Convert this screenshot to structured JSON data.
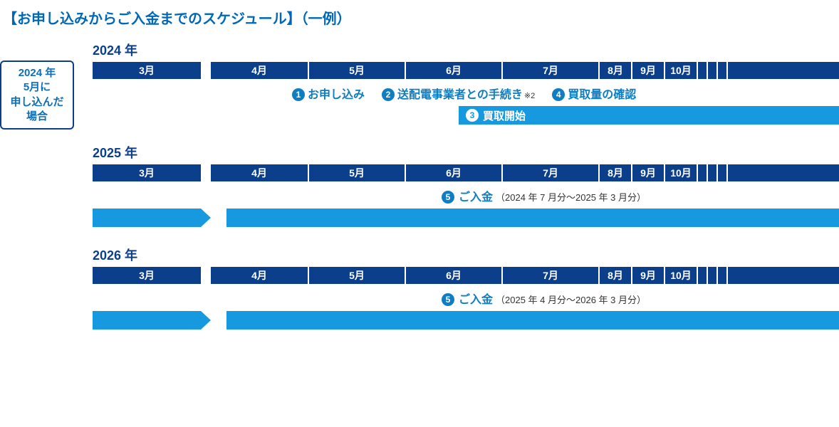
{
  "colors": {
    "title": "#0068b7",
    "dark_blue": "#0b3f8c",
    "bright_blue": "#1799df",
    "accent_text": "#0e7dc1",
    "sidebox_border": "#0b3f8c",
    "sidebox_text": "#0e6fb8"
  },
  "title": "【お申し込みからご入金までのスケジュール】（一例）",
  "sidebox": {
    "line1": "2024 年",
    "line2": "5月に",
    "line3": "申し込んだ",
    "line4": "場合"
  },
  "layout": {
    "total_width": 1048,
    "march_width": 152,
    "gap_after_march": 14,
    "mid_width": 136,
    "small_width": 46,
    "march_to_june_end": 710,
    "arrow_left_width": 152
  },
  "months": [
    "3月",
    "4月",
    "5月",
    "6月",
    "7月",
    "8月",
    "9月",
    "10月"
  ],
  "small_tail_count": 4,
  "years": [
    {
      "label": "2024 年",
      "type": "first",
      "steps_row": [
        {
          "n": "1",
          "text": "お申し込み"
        },
        {
          "n": "2",
          "text": "送配電事業者との手続き",
          "sup": "※2"
        },
        {
          "n": "4",
          "text": "買取量の確認"
        }
      ],
      "start_bar": {
        "n": "3",
        "text": "買取開始"
      }
    },
    {
      "label": "2025 年",
      "type": "payment",
      "payment": {
        "n": "5",
        "text": "ご入金",
        "range": "（2024 年 7 月分〜2025 年 3 月分）"
      }
    },
    {
      "label": "2026 年",
      "type": "payment",
      "payment": {
        "n": "5",
        "text": "ご入金",
        "range": "（2025 年 4 月分〜2026 年 3 月分）"
      }
    }
  ]
}
